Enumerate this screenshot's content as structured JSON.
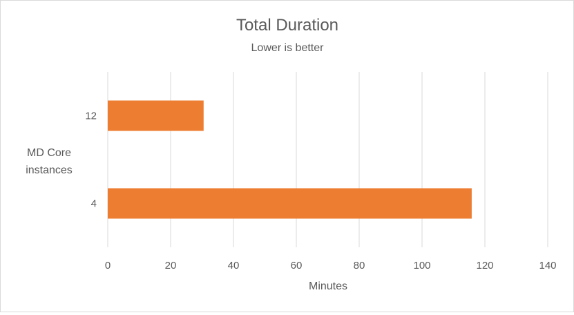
{
  "chart_data": {
    "type": "bar",
    "orientation": "horizontal",
    "title": "Total Duration",
    "subtitle": "Lower is better",
    "xlabel": "Minutes",
    "ylabel_lines": [
      "MD Core",
      "instances"
    ],
    "categories": [
      "12",
      "4"
    ],
    "values": [
      30.5,
      115.8
    ],
    "xlim": [
      0,
      140
    ],
    "xticks": [
      "0",
      "20",
      "40",
      "60",
      "80",
      "100",
      "120",
      "140"
    ],
    "grid": true,
    "legend": "none",
    "colors": {
      "bar": "#ED7D31",
      "grid": "#d9d9d9",
      "text": "#595959"
    }
  }
}
